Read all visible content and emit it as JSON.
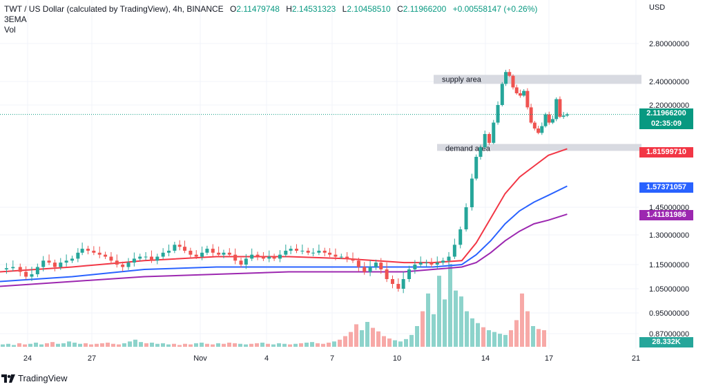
{
  "header": {
    "symbol_line": "TWT / US Dollar (calculated by TradingView), 4h, BINANCE",
    "ohlc": [
      {
        "key": "O",
        "value": "2.11479748"
      },
      {
        "key": "H",
        "value": "2.14531323"
      },
      {
        "key": "L",
        "value": "2.10458510"
      },
      {
        "key": "C",
        "value": "2.11966200"
      }
    ],
    "change": "+0.00558147 (+0.26%)",
    "indicator": "3EMA",
    "volume_label": "Vol",
    "currency": "USD"
  },
  "tags": {
    "last_price": "2.11966200",
    "countdown": "02:35:09",
    "ema_red": "1.81599710",
    "ema_blue": "1.57371057",
    "ema_purple": "1.41181986",
    "volume": "28.332K"
  },
  "colors": {
    "up": "#26a69a",
    "down": "#ef5350",
    "ema_red": "#f23645",
    "ema_blue": "#2962ff",
    "ema_purple": "#9c27b0",
    "zone": "#d1d4dc",
    "current_tag": "#089981"
  },
  "branding": "TradingView",
  "chart_data": {
    "type": "candlestick",
    "timeframe": "4h",
    "y_axis_ticks": [
      "2.80000000",
      "2.40000000",
      "2.20000000",
      "1.45000000",
      "1.30000000",
      "1.15000000",
      "1.05000000",
      "0.95000000",
      "0.87000000"
    ],
    "x_axis_ticks": [
      "24",
      "27",
      "Nov",
      "4",
      "7",
      "10",
      "14",
      "17",
      "21"
    ],
    "grid": true,
    "zones": [
      {
        "label": "supply area",
        "from": 2.38,
        "to": 2.47
      },
      {
        "label": "demand area",
        "from": 1.8,
        "to": 1.86
      }
    ],
    "series": [
      {
        "name": "Price",
        "close_path": [
          [
            0,
            1.13
          ],
          [
            9,
            1.135
          ],
          [
            18,
            1.14
          ],
          [
            28,
            1.12
          ],
          [
            36,
            1.1
          ],
          [
            44,
            1.11
          ],
          [
            52,
            1.14
          ],
          [
            60,
            1.17
          ],
          [
            68,
            1.16
          ],
          [
            76,
            1.14
          ],
          [
            84,
            1.16
          ],
          [
            92,
            1.17
          ],
          [
            100,
            1.18
          ],
          [
            108,
            1.21
          ],
          [
            114,
            1.23
          ],
          [
            122,
            1.22
          ],
          [
            130,
            1.21
          ],
          [
            138,
            1.2
          ],
          [
            146,
            1.19
          ],
          [
            154,
            1.17
          ],
          [
            162,
            1.15
          ],
          [
            170,
            1.14
          ],
          [
            178,
            1.16
          ],
          [
            186,
            1.18
          ],
          [
            194,
            1.19
          ],
          [
            202,
            1.19
          ],
          [
            210,
            1.17
          ],
          [
            218,
            1.19
          ],
          [
            226,
            1.21
          ],
          [
            234,
            1.22
          ],
          [
            242,
            1.25
          ],
          [
            249,
            1.24
          ],
          [
            256,
            1.22
          ],
          [
            264,
            1.2
          ],
          [
            272,
            1.19
          ],
          [
            280,
            1.21
          ],
          [
            287,
            1.23
          ],
          [
            295,
            1.21
          ],
          [
            303,
            1.2
          ],
          [
            310,
            1.21
          ],
          [
            318,
            1.2
          ],
          [
            326,
            1.17
          ],
          [
            334,
            1.15
          ],
          [
            341,
            1.18
          ],
          [
            349,
            1.2
          ],
          [
            357,
            1.19
          ],
          [
            365,
            1.18
          ],
          [
            373,
            1.19
          ],
          [
            380,
            1.18
          ],
          [
            388,
            1.2
          ],
          [
            396,
            1.22
          ],
          [
            403,
            1.23
          ],
          [
            411,
            1.22
          ],
          [
            419,
            1.22
          ],
          [
            427,
            1.21
          ],
          [
            434,
            1.21
          ],
          [
            442,
            1.22
          ],
          [
            450,
            1.21
          ],
          [
            457,
            1.2
          ],
          [
            465,
            1.19
          ],
          [
            473,
            1.19
          ],
          [
            481,
            1.18
          ],
          [
            489,
            1.17
          ],
          [
            497,
            1.14
          ],
          [
            505,
            1.12
          ],
          [
            513,
            1.14
          ],
          [
            521,
            1.16
          ],
          [
            528,
            1.13
          ],
          [
            536,
            1.09
          ],
          [
            544,
            1.07
          ],
          [
            552,
            1.05
          ],
          [
            559,
            1.09
          ],
          [
            567,
            1.13
          ],
          [
            575,
            1.15
          ],
          [
            583,
            1.16
          ],
          [
            591,
            1.16
          ],
          [
            598,
            1.15
          ],
          [
            606,
            1.16
          ],
          [
            614,
            1.17
          ],
          [
            622,
            1.19
          ],
          [
            630,
            1.25
          ],
          [
            638,
            1.33
          ],
          [
            646,
            1.45
          ],
          [
            654,
            1.62
          ],
          [
            660,
            1.76
          ],
          [
            666,
            1.83
          ],
          [
            672,
            1.95
          ],
          [
            678,
            1.87
          ],
          [
            684,
            2.05
          ],
          [
            690,
            2.2
          ],
          [
            696,
            2.38
          ],
          [
            701,
            2.5
          ],
          [
            706,
            2.46
          ],
          [
            711,
            2.35
          ],
          [
            716,
            2.3
          ],
          [
            721,
            2.28
          ],
          [
            726,
            2.32
          ],
          [
            731,
            2.18
          ],
          [
            736,
            2.05
          ],
          [
            741,
            2.0
          ],
          [
            746,
            1.96
          ],
          [
            751,
            2.02
          ],
          [
            756,
            2.12
          ],
          [
            761,
            2.05
          ],
          [
            766,
            2.08
          ],
          [
            771,
            2.25
          ],
          [
            776,
            2.1
          ],
          [
            781,
            2.11
          ],
          [
            786,
            2.12
          ]
        ]
      },
      {
        "name": "EMA red",
        "x": [
          0,
          100,
          200,
          300,
          400,
          480,
          520,
          560,
          600,
          640,
          660,
          680,
          700,
          720,
          740,
          760,
          786
        ],
        "y": [
          1.12,
          1.14,
          1.17,
          1.19,
          1.19,
          1.18,
          1.17,
          1.16,
          1.16,
          1.17,
          1.26,
          1.39,
          1.53,
          1.63,
          1.7,
          1.77,
          1.816
        ]
      },
      {
        "name": "EMA blue",
        "x": [
          0,
          100,
          200,
          300,
          400,
          480,
          520,
          560,
          600,
          640,
          660,
          680,
          700,
          720,
          740,
          760,
          786
        ],
        "y": [
          1.08,
          1.1,
          1.13,
          1.14,
          1.14,
          1.14,
          1.14,
          1.14,
          1.14,
          1.15,
          1.2,
          1.27,
          1.36,
          1.43,
          1.48,
          1.52,
          1.574
        ]
      },
      {
        "name": "EMA purple",
        "x": [
          0,
          100,
          200,
          300,
          400,
          480,
          520,
          560,
          600,
          640,
          660,
          680,
          700,
          720,
          740,
          760,
          786
        ],
        "y": [
          1.06,
          1.08,
          1.1,
          1.11,
          1.12,
          1.12,
          1.12,
          1.12,
          1.13,
          1.14,
          1.16,
          1.21,
          1.27,
          1.32,
          1.36,
          1.38,
          1.412
        ]
      },
      {
        "name": "Vol",
        "unit": "K",
        "bars": [
          4,
          5,
          3,
          6,
          4,
          5,
          7,
          4,
          6,
          8,
          5,
          6,
          9,
          7,
          5,
          6,
          4,
          5,
          6,
          7,
          5,
          4,
          6,
          9,
          12,
          8,
          6,
          7,
          5,
          6,
          4,
          5,
          3,
          5,
          4,
          6,
          7,
          5,
          4,
          6,
          5,
          7,
          6,
          5,
          4,
          5,
          6,
          7,
          5,
          4,
          6,
          5,
          4,
          5,
          6,
          7,
          8,
          6,
          5,
          7,
          9,
          12,
          18,
          25,
          38,
          28,
          42,
          32,
          26,
          18,
          14,
          11,
          9,
          13,
          20,
          35,
          60,
          90,
          55,
          120,
          80,
          140,
          95,
          85,
          60,
          48,
          40,
          33,
          28,
          25,
          22,
          20,
          28,
          45,
          90,
          60,
          35,
          30,
          28
        ]
      }
    ]
  }
}
